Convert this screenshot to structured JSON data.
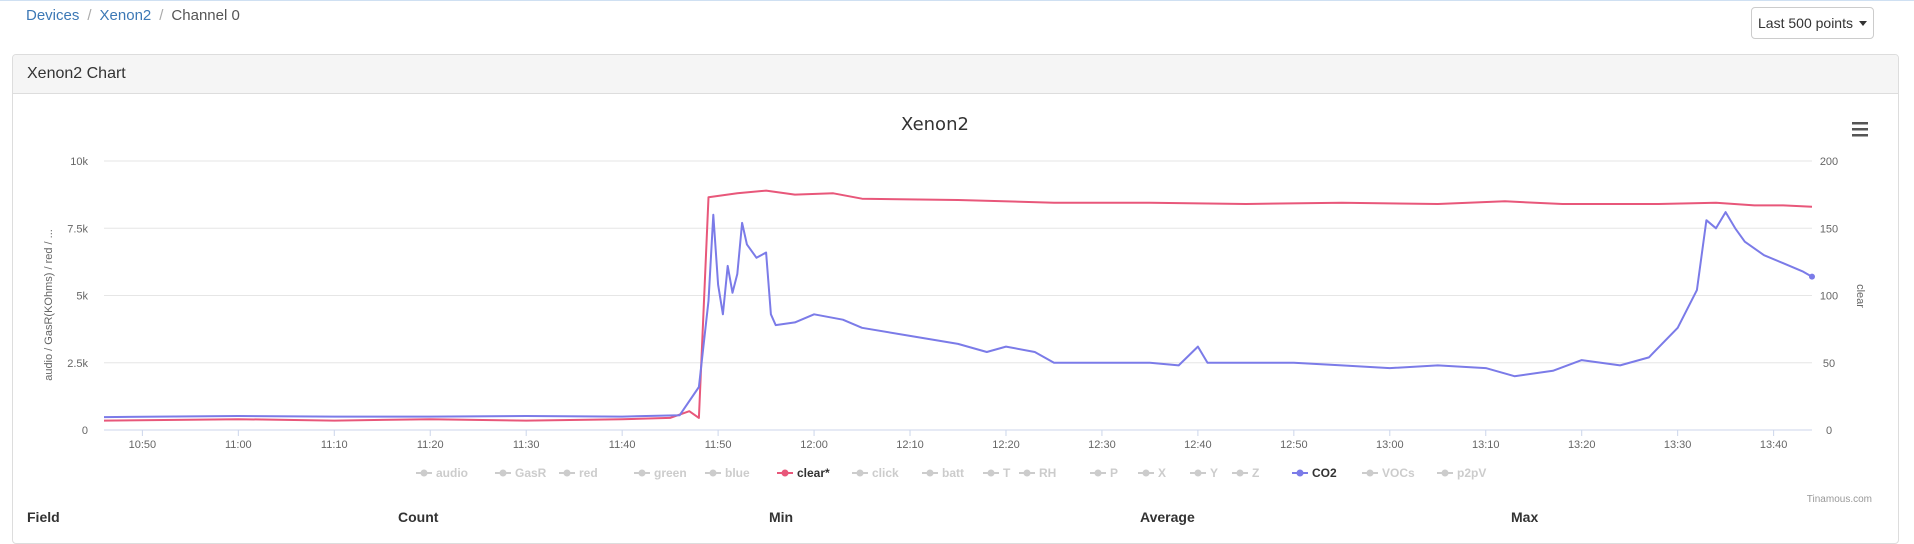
{
  "breadcrumb": {
    "items": [
      "Devices",
      "Xenon2",
      "Channel 0"
    ]
  },
  "range_button": {
    "label": "Last 500 points"
  },
  "panel": {
    "title": "Xenon2 Chart"
  },
  "table_headers": [
    "Field",
    "Count",
    "Min",
    "Average",
    "Max"
  ],
  "credit": "Tinamous.com",
  "chart_data": {
    "type": "line",
    "title": "Xenon2",
    "xlabel": "",
    "ylabel_left": "audio / GasR(KOhms) / red / ...",
    "ylabel_right": "clear",
    "x_ticks": [
      "10:50",
      "11:00",
      "11:10",
      "11:20",
      "11:30",
      "11:40",
      "11:50",
      "12:00",
      "12:10",
      "12:20",
      "12:30",
      "12:40",
      "12:50",
      "13:00",
      "13:10",
      "13:20",
      "13:30",
      "13:40"
    ],
    "x_range": [
      "10:46",
      "13:44"
    ],
    "y_left": {
      "ticks": [
        "0",
        "2.5k",
        "5k",
        "7.5k",
        "10k"
      ],
      "range": [
        0,
        10000
      ]
    },
    "y_right": {
      "ticks": [
        "0",
        "50",
        "100",
        "150",
        "200"
      ],
      "range": [
        0,
        200
      ]
    },
    "grid": true,
    "legend_position": "bottom",
    "legend": [
      {
        "name": "audio",
        "active": false
      },
      {
        "name": "GasR",
        "active": false
      },
      {
        "name": "red",
        "active": false
      },
      {
        "name": "green",
        "active": false
      },
      {
        "name": "blue",
        "active": false
      },
      {
        "name": "clear*",
        "active": true
      },
      {
        "name": "click",
        "active": false
      },
      {
        "name": "batt",
        "active": false
      },
      {
        "name": "T",
        "active": false
      },
      {
        "name": "RH",
        "active": false
      },
      {
        "name": "P",
        "active": false
      },
      {
        "name": "X",
        "active": false
      },
      {
        "name": "Y",
        "active": false
      },
      {
        "name": "Z",
        "active": false
      },
      {
        "name": "CO2",
        "active": true
      },
      {
        "name": "VOCs",
        "active": false
      },
      {
        "name": "p2pV",
        "active": false
      }
    ],
    "colors": {
      "clear": "#e8577a",
      "CO2": "#7b7be8",
      "inactive": "#cccccc"
    },
    "series": [
      {
        "name": "clear*",
        "axis": "right",
        "points": [
          [
            "10:46",
            7
          ],
          [
            "11:00",
            8
          ],
          [
            "11:10",
            7
          ],
          [
            "11:20",
            8
          ],
          [
            "11:30",
            7
          ],
          [
            "11:40",
            8
          ],
          [
            "11:45",
            9
          ],
          [
            "11:47",
            14
          ],
          [
            "11:48",
            9
          ],
          [
            "11:49",
            173
          ],
          [
            "11:52",
            176
          ],
          [
            "11:55",
            178
          ],
          [
            "11:58",
            175
          ],
          [
            "12:02",
            176
          ],
          [
            "12:05",
            172
          ],
          [
            "12:15",
            171
          ],
          [
            "12:25",
            169
          ],
          [
            "12:35",
            169
          ],
          [
            "12:45",
            168
          ],
          [
            "12:55",
            169
          ],
          [
            "13:05",
            168
          ],
          [
            "13:12",
            170
          ],
          [
            "13:18",
            168
          ],
          [
            "13:28",
            168
          ],
          [
            "13:34",
            169
          ],
          [
            "13:38",
            167
          ],
          [
            "13:41",
            167
          ],
          [
            "13:44",
            166
          ]
        ]
      },
      {
        "name": "CO2",
        "axis": "left",
        "points": [
          [
            "10:46",
            480
          ],
          [
            "11:00",
            520
          ],
          [
            "11:10",
            500
          ],
          [
            "11:20",
            500
          ],
          [
            "11:30",
            520
          ],
          [
            "11:40",
            500
          ],
          [
            "11:46",
            550
          ],
          [
            "11:48",
            1600
          ],
          [
            "11:49",
            4800
          ],
          [
            "11:49.5",
            8000
          ],
          [
            "11:50",
            5400
          ],
          [
            "11:50.5",
            4300
          ],
          [
            "11:51",
            6100
          ],
          [
            "11:51.5",
            5100
          ],
          [
            "11:52",
            5800
          ],
          [
            "11:52.5",
            7700
          ],
          [
            "11:53",
            6900
          ],
          [
            "11:54",
            6400
          ],
          [
            "11:55",
            6600
          ],
          [
            "11:55.5",
            4300
          ],
          [
            "11:56",
            3900
          ],
          [
            "11:58",
            4000
          ],
          [
            "12:00",
            4300
          ],
          [
            "12:03",
            4100
          ],
          [
            "12:05",
            3800
          ],
          [
            "12:10",
            3500
          ],
          [
            "12:15",
            3200
          ],
          [
            "12:18",
            2900
          ],
          [
            "12:20",
            3100
          ],
          [
            "12:23",
            2900
          ],
          [
            "12:25",
            2500
          ],
          [
            "12:30",
            2500
          ],
          [
            "12:35",
            2500
          ],
          [
            "12:38",
            2400
          ],
          [
            "12:40",
            3100
          ],
          [
            "12:41",
            2500
          ],
          [
            "12:50",
            2500
          ],
          [
            "12:55",
            2400
          ],
          [
            "13:00",
            2300
          ],
          [
            "13:05",
            2400
          ],
          [
            "13:10",
            2300
          ],
          [
            "13:13",
            2000
          ],
          [
            "13:17",
            2200
          ],
          [
            "13:20",
            2600
          ],
          [
            "13:24",
            2400
          ],
          [
            "13:27",
            2700
          ],
          [
            "13:30",
            3800
          ],
          [
            "13:32",
            5200
          ],
          [
            "13:33",
            7800
          ],
          [
            "13:34",
            7500
          ],
          [
            "13:35",
            8100
          ],
          [
            "13:36",
            7500
          ],
          [
            "13:37",
            7000
          ],
          [
            "13:39",
            6500
          ],
          [
            "13:41",
            6200
          ],
          [
            "13:43",
            5900
          ],
          [
            "13:44",
            5700
          ]
        ]
      }
    ]
  }
}
